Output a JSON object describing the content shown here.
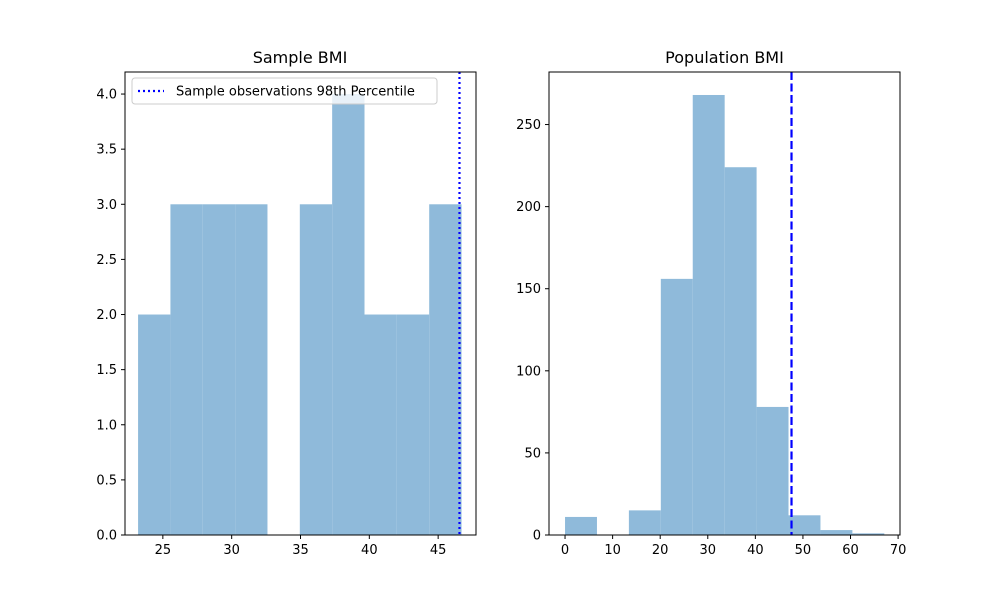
{
  "chart_data": [
    {
      "type": "bar",
      "title": "Sample BMI",
      "xlabel": "",
      "ylabel": "",
      "xlim": [
        22.25,
        47.75
      ],
      "ylim": [
        0,
        4.2
      ],
      "xticks": [
        "25",
        "30",
        "35",
        "40",
        "45"
      ],
      "yticks": [
        "0.0",
        "0.5",
        "1.0",
        "1.5",
        "2.0",
        "2.5",
        "3.0",
        "3.5",
        "4.0"
      ],
      "bins": [
        {
          "x0": 23.2,
          "x1": 25.55,
          "value": 2
        },
        {
          "x0": 25.55,
          "x1": 27.9,
          "value": 3
        },
        {
          "x0": 27.9,
          "x1": 30.25,
          "value": 3
        },
        {
          "x0": 30.25,
          "x1": 32.6,
          "value": 3
        },
        {
          "x0": 32.6,
          "x1": 34.95,
          "value": 0
        },
        {
          "x0": 34.95,
          "x1": 37.3,
          "value": 3
        },
        {
          "x0": 37.3,
          "x1": 39.65,
          "value": 4
        },
        {
          "x0": 39.65,
          "x1": 42.0,
          "value": 2
        },
        {
          "x0": 42.0,
          "x1": 44.35,
          "value": 2
        },
        {
          "x0": 44.35,
          "x1": 46.7,
          "value": 3
        }
      ],
      "bar_color": "#8fbada",
      "vline": {
        "x": 46.55,
        "style": "dotted",
        "color": "#0000ff"
      },
      "legend": {
        "label": "Sample observations 98th Percentile",
        "placement": "top-left"
      }
    },
    {
      "type": "bar",
      "title": "Population BMI",
      "xlabel": "",
      "ylabel": "",
      "xlim": [
        -3.37,
        70.4
      ],
      "ylim": [
        0,
        282
      ],
      "xticks": [
        "0",
        "10",
        "20",
        "30",
        "40",
        "50",
        "60",
        "70"
      ],
      "yticks": [
        "0",
        "50",
        "100",
        "150",
        "200",
        "250"
      ],
      "bins": [
        {
          "x0": 0,
          "x1": 6.71,
          "value": 11
        },
        {
          "x0": 6.71,
          "x1": 13.42,
          "value": 0
        },
        {
          "x0": 13.42,
          "x1": 20.13,
          "value": 15
        },
        {
          "x0": 20.13,
          "x1": 26.84,
          "value": 156
        },
        {
          "x0": 26.84,
          "x1": 33.55,
          "value": 268
        },
        {
          "x0": 33.55,
          "x1": 40.26,
          "value": 224
        },
        {
          "x0": 40.26,
          "x1": 46.97,
          "value": 78
        },
        {
          "x0": 46.97,
          "x1": 53.68,
          "value": 12
        },
        {
          "x0": 53.68,
          "x1": 60.39,
          "value": 3
        },
        {
          "x0": 60.39,
          "x1": 67.1,
          "value": 1
        }
      ],
      "bar_color": "#8fbada",
      "vline": {
        "x": 47.6,
        "style": "dashed",
        "color": "#0000ff"
      }
    }
  ]
}
